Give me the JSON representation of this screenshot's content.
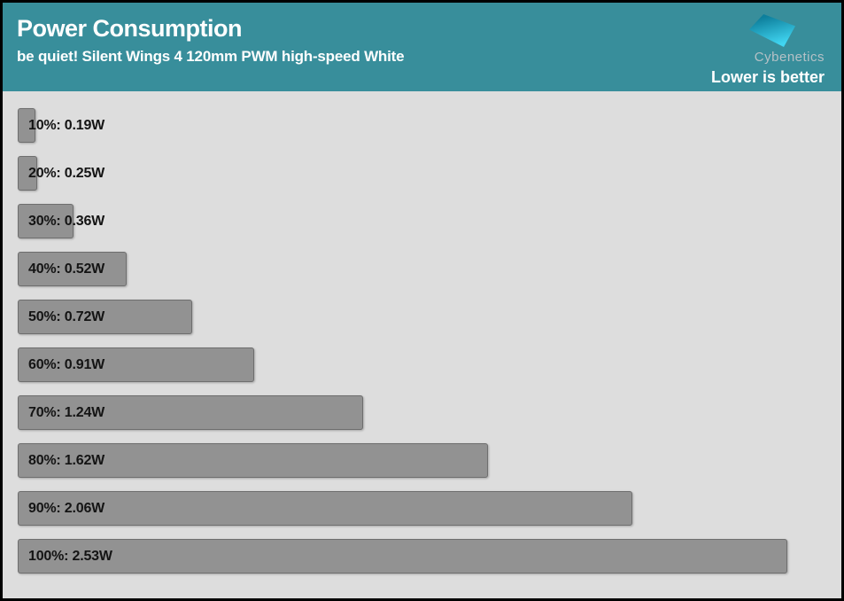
{
  "header": {
    "title": "Power Consumption",
    "subtitle": "be quiet! Silent Wings 4 120mm PWM high-speed White",
    "brand": "Cybenetics",
    "note": "Lower is better",
    "background_color": "#388e9b",
    "logo_gradient": [
      "#0d7f9c",
      "#41d6f2"
    ]
  },
  "chart_data": {
    "type": "bar",
    "orientation": "horizontal",
    "title": "Power Consumption",
    "subtitle": "be quiet! Silent Wings 4 120mm PWM high-speed White",
    "categories": [
      "10%",
      "20%",
      "30%",
      "40%",
      "50%",
      "60%",
      "70%",
      "80%",
      "90%",
      "100%"
    ],
    "values": [
      0.19,
      0.25,
      0.36,
      0.52,
      0.72,
      0.91,
      1.24,
      1.62,
      2.06,
      2.53
    ],
    "unit": "W",
    "labels": [
      "10%: 0.19W",
      "20%: 0.25W",
      "30%: 0.36W",
      "40%: 0.52W",
      "50%: 0.72W",
      "60%: 0.91W",
      "70%: 1.24W",
      "80%: 1.62W",
      "90%: 2.06W",
      "100%: 2.53W"
    ],
    "xlim": [
      0.19,
      2.53
    ],
    "grid": false,
    "legend": false,
    "bar_color": "#929292",
    "bar_border_color": "#6e6e6e",
    "background_color": "#dddddd",
    "annotation": "Lower is better"
  }
}
